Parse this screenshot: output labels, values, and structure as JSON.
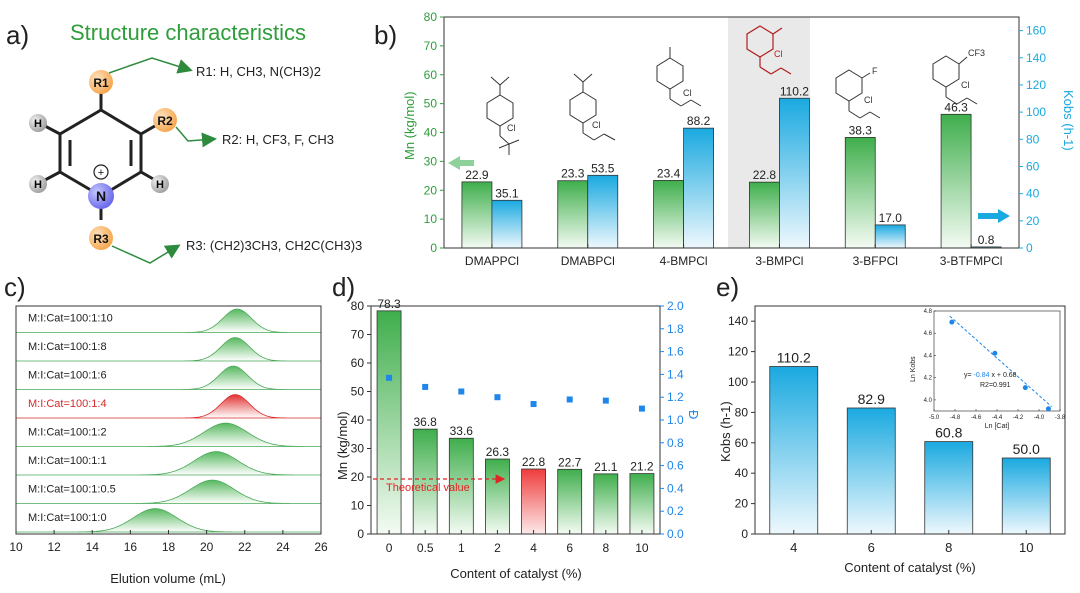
{
  "colors": {
    "green": "#2e9d3a",
    "blue": "#1aa9e0",
    "red": "#d42a2a",
    "marker": "#1f86ea"
  },
  "panel_a": {
    "label": "a)",
    "title": "Structure characteristics",
    "r1": "R1: H, CH3, N(CH3)2",
    "r2": "R2: H, CF3, F, CH3",
    "r3": "R3: (CH2)3CH3, CH2C(CH3)3",
    "atom_h": "H",
    "atom_n": "N",
    "atom_plus": "+",
    "sub_r1": "R1",
    "sub_r2": "R2",
    "sub_r3": "R3"
  },
  "chart_data": [
    {
      "panel": "b)",
      "type": "bar",
      "categories": [
        "DMAPPCl",
        "DMABPCl",
        "4-BMPCl",
        "3-BMPCl",
        "3-BFPCl",
        "3-BTFMPCl"
      ],
      "series": [
        {
          "name": "Mn",
          "axis": "left",
          "values": [
            22.9,
            23.3,
            23.4,
            22.8,
            38.3,
            46.3
          ]
        },
        {
          "name": "Kobs",
          "axis": "right",
          "values": [
            35.1,
            53.5,
            88.2,
            110.2,
            17.0,
            0.8
          ]
        }
      ],
      "value_labels": {
        "Mn": [
          "22.9",
          "23.3",
          "23.4",
          "22.8",
          "38.3",
          "46.3"
        ],
        "Kobs": [
          "35.1",
          "53.5",
          "88.2",
          "110.2",
          "17.0",
          "0.8"
        ]
      },
      "ylabel": "Mn (kg/mol)",
      "ylabel_right": "Kobs (h-1)",
      "ylim": [
        0,
        80
      ],
      "ylim_right": [
        0,
        170
      ],
      "yticks": [
        0,
        10,
        20,
        30,
        40,
        50,
        60,
        70,
        80
      ],
      "yticks_right": [
        0,
        20,
        40,
        60,
        80,
        100,
        120,
        140,
        160
      ],
      "highlighted": "3-BMPCl",
      "structure_glyphs": {
        "cl": "Cl",
        "f": "F",
        "cf3": "CF3"
      }
    },
    {
      "panel": "c)",
      "type": "area",
      "title": "",
      "xlabel": "Elution volume (mL)",
      "xlim": [
        10,
        26
      ],
      "xticks": [
        10,
        12,
        14,
        16,
        18,
        20,
        22,
        24,
        26
      ],
      "series": [
        {
          "name": "M:I:Cat=100:1:10",
          "peak": 21.6,
          "highlight": false
        },
        {
          "name": "M:I:Cat=100:1:8",
          "peak": 21.5,
          "highlight": false
        },
        {
          "name": "M:I:Cat=100:1:6",
          "peak": 21.4,
          "highlight": false
        },
        {
          "name": "M:I:Cat=100:1:4",
          "peak": 21.5,
          "highlight": true
        },
        {
          "name": "M:I:Cat=100:1:2",
          "peak": 21.0,
          "highlight": false
        },
        {
          "name": "M:I:Cat=100:1:1",
          "peak": 20.5,
          "highlight": false
        },
        {
          "name": "M:I:Cat=100:1:0.5",
          "peak": 20.3,
          "highlight": false
        },
        {
          "name": "M:I:Cat=100:1:0",
          "peak": 17.3,
          "highlight": false
        }
      ]
    },
    {
      "panel": "d)",
      "type": "bar",
      "categories": [
        "0",
        "0.5",
        "1",
        "2",
        "4",
        "6",
        "8",
        "10"
      ],
      "series": [
        {
          "name": "Mn",
          "axis": "left",
          "values": [
            78.3,
            36.8,
            33.6,
            26.3,
            22.8,
            22.7,
            21.1,
            21.2
          ]
        },
        {
          "name": "Đ",
          "axis": "right",
          "type": "scatter",
          "values": [
            1.37,
            1.29,
            1.25,
            1.2,
            1.14,
            1.18,
            1.17,
            1.1
          ]
        }
      ],
      "value_labels": [
        "78.3",
        "36.8",
        "33.6",
        "26.3",
        "22.8",
        "22.7",
        "21.1",
        "21.2"
      ],
      "xlabel": "Content of catalyst (%)",
      "ylabel": "Mn (kg/mol)",
      "ylabel_right": "Đ",
      "ylim": [
        0,
        80
      ],
      "ylim_right": [
        0,
        2.0
      ],
      "yticks": [
        0,
        10,
        20,
        30,
        40,
        50,
        60,
        70,
        80
      ],
      "yticks_right": [
        "0.0",
        "0.2",
        "0.4",
        "0.6",
        "0.8",
        "1.0",
        "1.2",
        "1.4",
        "1.6",
        "1.8",
        "2.0"
      ],
      "highlighted": "4",
      "annotation": "Theoretical value",
      "theoretical_value": 22
    },
    {
      "panel": "e)",
      "type": "bar",
      "categories": [
        "4",
        "6",
        "8",
        "10"
      ],
      "values": [
        110.2,
        82.9,
        60.8,
        50.0
      ],
      "value_labels": [
        "110.2",
        "82.9",
        "60.8",
        "50.0"
      ],
      "xlabel": "Content of catalyst (%)",
      "ylabel": "Kobs (h-1)",
      "ylim": [
        0,
        150
      ],
      "yticks": [
        0,
        20,
        40,
        60,
        80,
        100,
        120,
        140
      ],
      "inset": {
        "type": "scatter",
        "x": [
          -4.83,
          -4.42,
          -4.13,
          -3.91
        ],
        "y": [
          4.7,
          4.42,
          4.11,
          3.92
        ],
        "xlabel": "Ln [Cat]",
        "ylabel": "Ln Kobs",
        "xlim": [
          -5.0,
          -3.8
        ],
        "ylim": [
          3.9,
          4.8
        ],
        "xticks": [
          "-5.0",
          "-4.8",
          "-4.6",
          "-4.4",
          "-4.2",
          "-4.0",
          "-3.8"
        ],
        "yticks": [
          "4.0",
          "4.2",
          "4.4",
          "4.6",
          "4.8"
        ],
        "fit_prefix": "y= ",
        "fit_slope": "-0.84",
        "fit_rest": " x + 0.68",
        "r2": "R2=0.991",
        "slope": -0.84,
        "intercept": 0.68
      }
    }
  ]
}
